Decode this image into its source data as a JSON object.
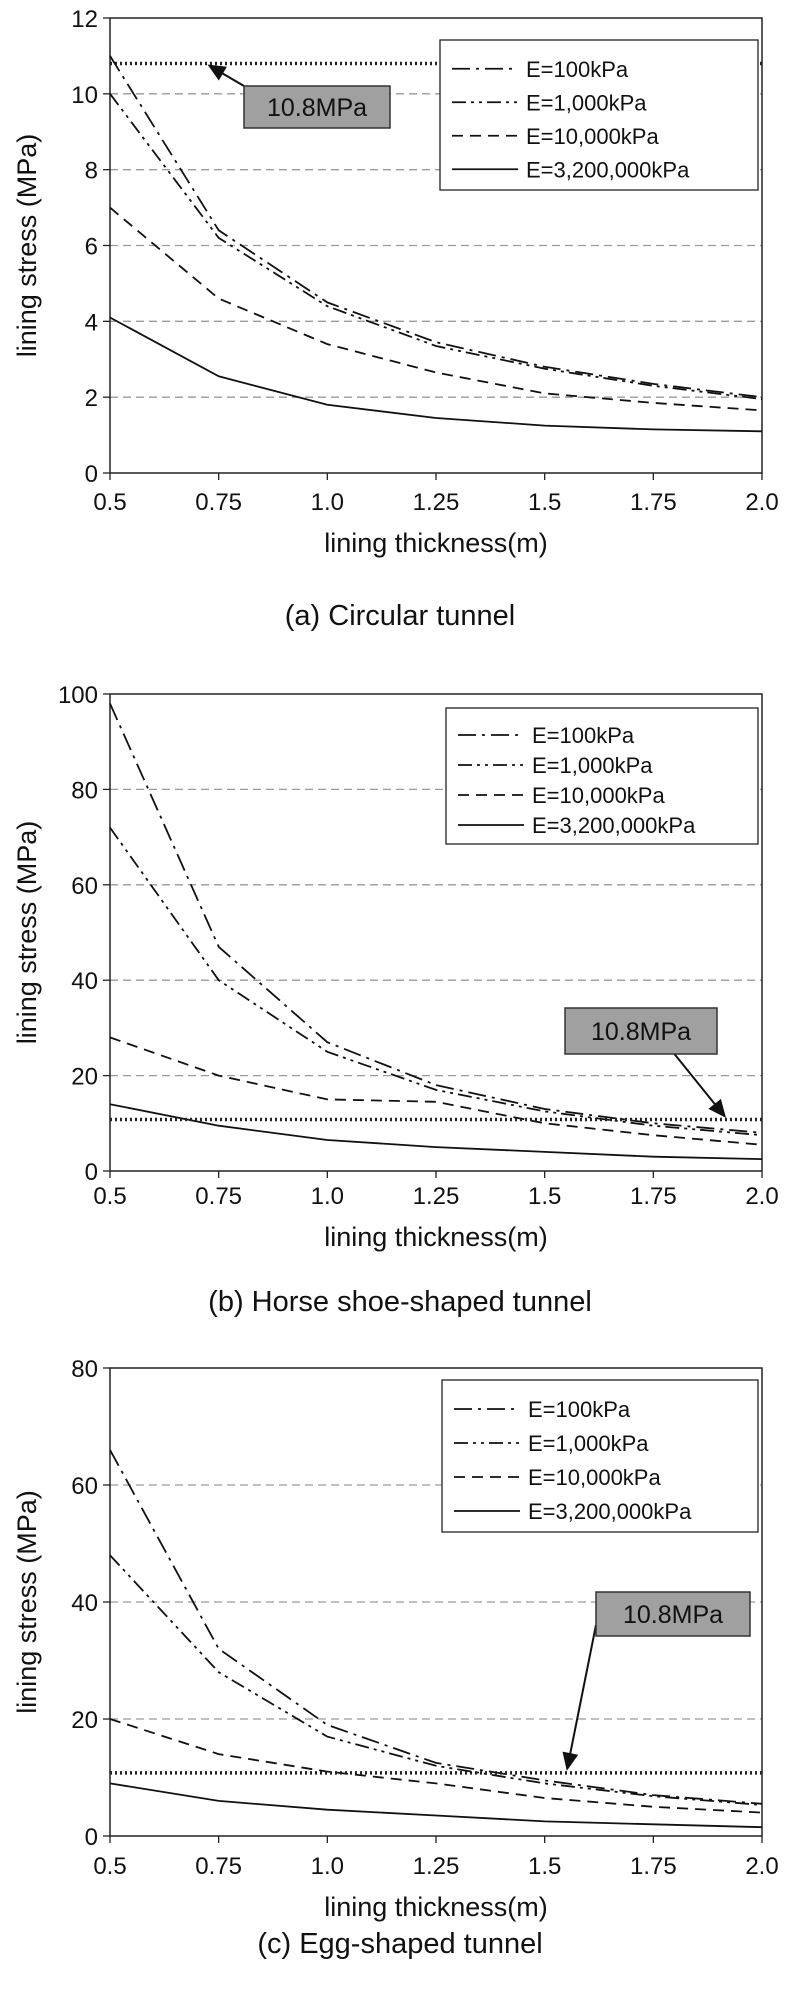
{
  "chart_data": [
    {
      "type": "line",
      "caption": "(a) Circular tunnel",
      "xlabel": "lining thickness(m)",
      "ylabel": "lining stress (MPa)",
      "x": [
        0.5,
        0.75,
        1.0,
        1.25,
        1.5,
        1.75,
        2.0
      ],
      "xticks": [
        "0.5",
        "0.75",
        "1.0",
        "1.25",
        "1.5",
        "1.75",
        "2.0"
      ],
      "ylim": [
        0,
        12
      ],
      "yticks": [
        0,
        2,
        4,
        6,
        8,
        10,
        12
      ],
      "grid": "horizontal dashed",
      "legend_position": "top-right",
      "series": [
        {
          "name": "E=100kPa",
          "dash": "dash-dot",
          "values": [
            11.0,
            6.4,
            4.5,
            3.45,
            2.8,
            2.35,
            2.0
          ]
        },
        {
          "name": "E=1,000kPa",
          "dash": "dash-dot-dot",
          "values": [
            10.0,
            6.2,
            4.4,
            3.35,
            2.75,
            2.3,
            1.95
          ]
        },
        {
          "name": "E=10,000kPa",
          "dash": "dashed",
          "values": [
            7.0,
            4.6,
            3.4,
            2.65,
            2.1,
            1.85,
            1.65
          ]
        },
        {
          "name": "E=3,200,000kPa",
          "dash": "solid",
          "values": [
            4.1,
            2.55,
            1.8,
            1.45,
            1.25,
            1.15,
            1.1
          ]
        }
      ],
      "reference_line": {
        "value": 10.8,
        "label": "10.8MPa"
      },
      "annotation_arrow_to": {
        "x": 0.72,
        "y": 10.8
      }
    },
    {
      "type": "line",
      "caption": "(b) Horse shoe-shaped tunnel",
      "xlabel": "lining thickness(m)",
      "ylabel": "lining stress (MPa)",
      "x": [
        0.5,
        0.75,
        1.0,
        1.25,
        1.5,
        1.75,
        2.0
      ],
      "xticks": [
        "0.5",
        "0.75",
        "1.0",
        "1.25",
        "1.5",
        "1.75",
        "2.0"
      ],
      "ylim": [
        0,
        100
      ],
      "yticks": [
        0,
        20,
        40,
        60,
        80,
        100
      ],
      "grid": "horizontal dashed",
      "legend_position": "top-right",
      "series": [
        {
          "name": "E=100kPa",
          "dash": "dash-dot",
          "values": [
            98,
            47,
            27,
            18,
            13,
            10,
            8
          ]
        },
        {
          "name": "E=1,000kPa",
          "dash": "dash-dot-dot",
          "values": [
            72,
            40,
            25,
            17,
            12.5,
            9.5,
            7.5
          ]
        },
        {
          "name": "E=10,000kPa",
          "dash": "dashed",
          "values": [
            28,
            20,
            15,
            14.5,
            10,
            7.5,
            5.5
          ]
        },
        {
          "name": "E=3,200,000kPa",
          "dash": "solid",
          "values": [
            14,
            9.5,
            6.5,
            5,
            4,
            3,
            2.5
          ]
        }
      ],
      "reference_line": {
        "value": 10.8,
        "label": "10.8MPa"
      },
      "annotation_arrow_to": {
        "x": 1.92,
        "y": 10.8
      }
    },
    {
      "type": "line",
      "caption": "(c) Egg-shaped tunnel",
      "xlabel": "lining thickness(m)",
      "ylabel": "lining stress (MPa)",
      "x": [
        0.5,
        0.75,
        1.0,
        1.25,
        1.5,
        1.75,
        2.0
      ],
      "xticks": [
        "0.5",
        "0.75",
        "1.0",
        "1.25",
        "1.5",
        "1.75",
        "2.0"
      ],
      "ylim": [
        0,
        80
      ],
      "yticks": [
        0,
        20,
        40,
        60,
        80
      ],
      "grid": "horizontal dashed",
      "legend_position": "top-right",
      "series": [
        {
          "name": "E=100kPa",
          "dash": "dash-dot",
          "values": [
            66,
            32,
            19,
            12.5,
            9.5,
            7,
            5.5
          ]
        },
        {
          "name": "E=1,000kPa",
          "dash": "dash-dot-dot",
          "values": [
            48,
            28,
            17,
            12,
            9,
            6.8,
            5.3
          ]
        },
        {
          "name": "E=10,000kPa",
          "dash": "dashed",
          "values": [
            20,
            14,
            11,
            9,
            6.5,
            5,
            4
          ]
        },
        {
          "name": "E=3,200,000kPa",
          "dash": "solid",
          "values": [
            9,
            6,
            4.5,
            3.5,
            2.5,
            2,
            1.5
          ]
        }
      ],
      "reference_line": {
        "value": 10.8,
        "label": "10.8MPa"
      },
      "annotation_arrow_to": {
        "x": 1.55,
        "y": 10.8
      }
    }
  ],
  "colors": {
    "line": "#111111",
    "grid": "#9a9a9a",
    "reference_line": "#222222",
    "label_box_fill": "#a0a0a0",
    "label_box_stroke": "#333333"
  }
}
